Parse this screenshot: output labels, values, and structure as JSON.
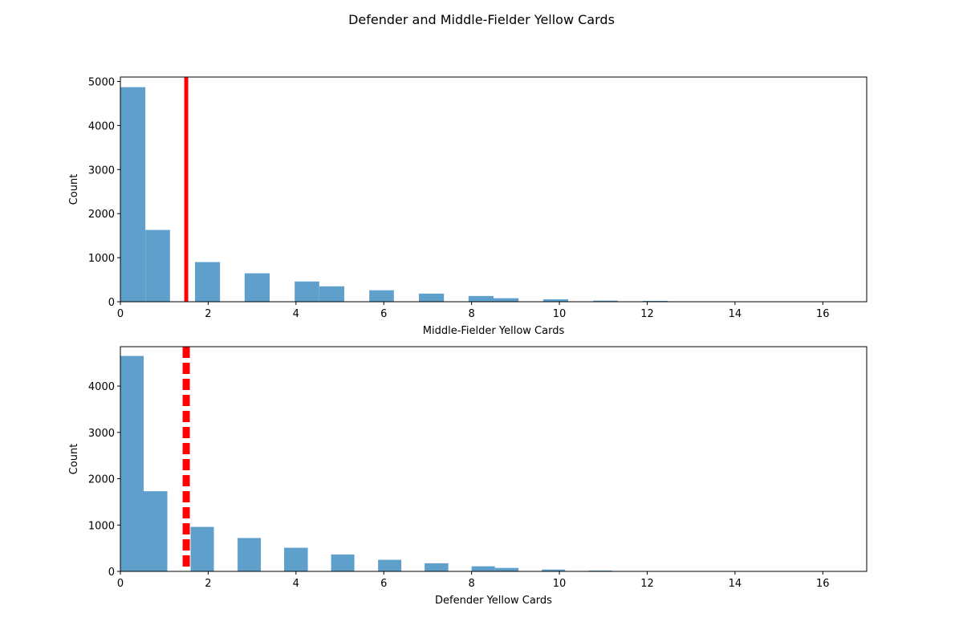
{
  "title": "Defender and Middle-Fielder Yellow Cards",
  "chart_data": [
    {
      "type": "bar",
      "variant": "histogram",
      "xlabel": "Middle-Fielder Yellow Cards",
      "ylabel": "Count",
      "xlim": [
        0,
        17
      ],
      "ylim": [
        0,
        5100
      ],
      "xticks": [
        0,
        2,
        4,
        6,
        8,
        10,
        12,
        14,
        16
      ],
      "yticks": [
        0,
        1000,
        2000,
        3000,
        4000,
        5000
      ],
      "bar_color": "#5f9fcc",
      "bars": [
        {
          "x0": 0.0,
          "x1": 0.57,
          "value": 4870
        },
        {
          "x0": 0.57,
          "x1": 1.13,
          "value": 1630
        },
        {
          "x0": 1.7,
          "x1": 2.27,
          "value": 900
        },
        {
          "x0": 2.83,
          "x1": 3.4,
          "value": 645
        },
        {
          "x0": 3.97,
          "x1": 4.53,
          "value": 460
        },
        {
          "x0": 4.53,
          "x1": 5.1,
          "value": 350
        },
        {
          "x0": 5.67,
          "x1": 6.23,
          "value": 260
        },
        {
          "x0": 6.8,
          "x1": 7.37,
          "value": 185
        },
        {
          "x0": 7.93,
          "x1": 8.5,
          "value": 130
        },
        {
          "x0": 8.5,
          "x1": 9.07,
          "value": 80
        },
        {
          "x0": 9.63,
          "x1": 10.2,
          "value": 55
        },
        {
          "x0": 10.77,
          "x1": 11.33,
          "value": 25
        },
        {
          "x0": 11.9,
          "x1": 12.47,
          "value": 20
        },
        {
          "x0": 15.87,
          "x1": 16.43,
          "value": 2
        }
      ],
      "reference_line": {
        "x": 1.5,
        "style": "solid",
        "color": "#ff0000"
      }
    },
    {
      "type": "bar",
      "variant": "histogram",
      "xlabel": "Defender Yellow Cards",
      "ylabel": "Count",
      "xlim": [
        0,
        17
      ],
      "ylim": [
        0,
        4850
      ],
      "xticks": [
        0,
        2,
        4,
        6,
        8,
        10,
        12,
        14,
        16
      ],
      "yticks": [
        0,
        1000,
        2000,
        3000,
        4000
      ],
      "bar_color": "#5f9fcc",
      "bars": [
        {
          "x0": 0.0,
          "x1": 0.53,
          "value": 4650
        },
        {
          "x0": 0.53,
          "x1": 1.07,
          "value": 1730
        },
        {
          "x0": 1.6,
          "x1": 2.13,
          "value": 960
        },
        {
          "x0": 2.67,
          "x1": 3.2,
          "value": 720
        },
        {
          "x0": 3.73,
          "x1": 4.27,
          "value": 510
        },
        {
          "x0": 4.8,
          "x1": 5.33,
          "value": 365
        },
        {
          "x0": 5.87,
          "x1": 6.4,
          "value": 250
        },
        {
          "x0": 6.93,
          "x1": 7.47,
          "value": 175
        },
        {
          "x0": 8.0,
          "x1": 8.53,
          "value": 110
        },
        {
          "x0": 8.53,
          "x1": 9.07,
          "value": 75
        },
        {
          "x0": 9.6,
          "x1": 10.13,
          "value": 40
        },
        {
          "x0": 10.67,
          "x1": 11.2,
          "value": 18
        },
        {
          "x0": 11.73,
          "x1": 12.27,
          "value": 6
        },
        {
          "x0": 16.0,
          "x1": 16.53,
          "value": 2
        }
      ],
      "reference_line": {
        "x": 1.5,
        "style": "dashed",
        "color": "#ff0000"
      }
    }
  ]
}
